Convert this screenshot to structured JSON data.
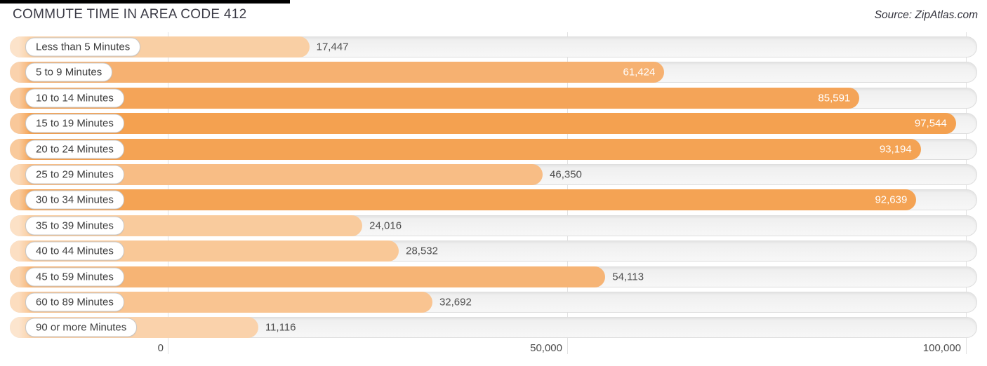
{
  "page": {
    "title": "COMMUTE TIME IN AREA CODE 412",
    "source_label": "Source: ZipAtlas.com"
  },
  "chart_data": {
    "type": "bar",
    "orientation": "horizontal",
    "title": "COMMUTE TIME IN AREA CODE 412",
    "source": "Source: ZipAtlas.com",
    "categories": [
      "Less than 5 Minutes",
      "5 to 9 Minutes",
      "10 to 14 Minutes",
      "15 to 19 Minutes",
      "20 to 24 Minutes",
      "25 to 29 Minutes",
      "30 to 34 Minutes",
      "35 to 39 Minutes",
      "40 to 44 Minutes",
      "45 to 59 Minutes",
      "60 to 89 Minutes",
      "90 or more Minutes"
    ],
    "values": [
      17447,
      61424,
      85591,
      97544,
      93194,
      46350,
      92639,
      24016,
      28532,
      54113,
      32692,
      11116
    ],
    "value_labels": [
      "17,447",
      "61,424",
      "85,591",
      "97,544",
      "93,194",
      "46,350",
      "92,639",
      "24,016",
      "28,532",
      "54,113",
      "32,692",
      "11,116"
    ],
    "bar_colors": [
      "#F9CFA4",
      "#F6B171",
      "#F4A458",
      "#F4A150",
      "#F4A354",
      "#F8BD85",
      "#F4A354",
      "#F9CB9D",
      "#F9C897",
      "#F6B475",
      "#F9C491",
      "#FAD2AB"
    ],
    "xlim": [
      0,
      100000
    ],
    "x_ticks": [
      "0",
      "50,000",
      "100,000"
    ],
    "grid": true,
    "legend": null,
    "track_color": "#F4F4F4",
    "gridline_color": "#E2E2E2"
  }
}
